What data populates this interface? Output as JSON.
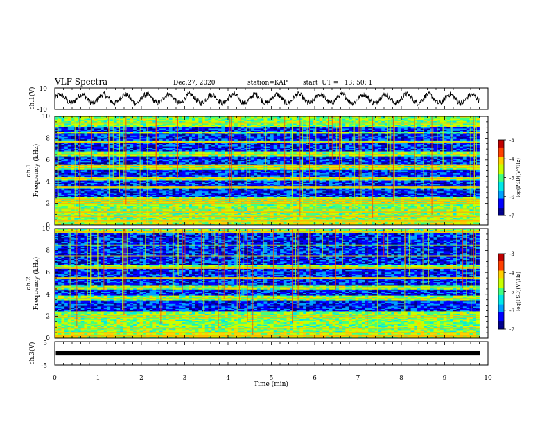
{
  "header": {
    "title": "VLF Spectra",
    "date": "Dec.27, 2020",
    "station": "station=KAP",
    "start": "start  UT =   13: 50: 1"
  },
  "chart_data": [
    {
      "type": "line",
      "ylabel": "ch.1(V)",
      "ylim": [
        -10,
        10
      ],
      "y_ticks": [
        "10",
        "-10"
      ],
      "xlim": [
        0,
        10
      ],
      "description_series": "waveform",
      "shape": {
        "offset": 0,
        "amp": 4,
        "period_min": 0.5
      }
    },
    {
      "type": "heatmap",
      "ylabel": "ch.1\nFrequency (kHz)",
      "ylabel_lines": [
        "ch.1",
        "Frequency (kHz)"
      ],
      "ylim": [
        0,
        10
      ],
      "y_ticks": [
        "0",
        "2",
        "4",
        "6",
        "8",
        "10"
      ],
      "xlim": [
        0,
        9.8
      ],
      "colorbar": {
        "label": "log(PSD)(V²/Hz)",
        "range": [
          -7,
          -3
        ],
        "ticks": [
          "-3",
          "-4",
          "-5",
          "-6",
          "-7"
        ]
      },
      "dark_bands_khz": [
        [
          2.6,
          3.3
        ],
        [
          3.6,
          4.1
        ],
        [
          4.4,
          5.1
        ],
        [
          5.6,
          6.3
        ],
        [
          6.8,
          7.5
        ],
        [
          7.8,
          8.4
        ],
        [
          8.6,
          9.0
        ]
      ],
      "line_khz": [
        0.4,
        0.8,
        1.2,
        1.5,
        2.0,
        2.2,
        2.4,
        3.5,
        4.3,
        5.3,
        5.5,
        6.5,
        7.6,
        9.4
      ]
    },
    {
      "type": "heatmap",
      "ylabel": "ch.2\nFrequency (kHz)",
      "ylabel_lines": [
        "ch.2",
        "Frequency (kHz)"
      ],
      "ylim": [
        0,
        10
      ],
      "y_ticks": [
        "0",
        "2",
        "4",
        "6",
        "8",
        "10"
      ],
      "xlim": [
        0,
        9.8
      ],
      "colorbar": {
        "label": "log(PSD)(V²/Hz)",
        "range": [
          -7,
          -3
        ],
        "ticks": [
          "-3",
          "-4",
          "-5",
          "-6",
          "-7"
        ]
      },
      "dark_bands_khz": [
        [
          2.5,
          3.4
        ],
        [
          3.9,
          4.4
        ],
        [
          4.8,
          5.4
        ],
        [
          5.6,
          6.3
        ],
        [
          6.7,
          7.4
        ],
        [
          7.6,
          8.4
        ],
        [
          8.6,
          9.6
        ]
      ],
      "line_khz": [
        0.2,
        0.5,
        0.9,
        1.9,
        2.1,
        3.6,
        4.6,
        5.5,
        6.4,
        7.5,
        9.7
      ]
    },
    {
      "type": "line",
      "ylabel": "ch.3(V)",
      "ylim": [
        -5,
        5
      ],
      "y_ticks": [
        "5",
        "-5"
      ],
      "xlim": [
        0,
        10
      ],
      "description_series": "near-constant signal",
      "shape": {
        "offset": 0.1,
        "amp": 0.2
      }
    }
  ],
  "x_axis": {
    "label": "Time (min)",
    "ticks": [
      "0",
      "1",
      "2",
      "3",
      "4",
      "5",
      "6",
      "7",
      "8",
      "9",
      "10"
    ],
    "range": [
      0,
      10
    ]
  },
  "colors": {
    "colormap": [
      "#00008c",
      "#0000ff",
      "#00a0ff",
      "#00e8e8",
      "#40ff80",
      "#c8ff00",
      "#ffd000",
      "#ff4000",
      "#c00000",
      "#ffffff"
    ]
  }
}
